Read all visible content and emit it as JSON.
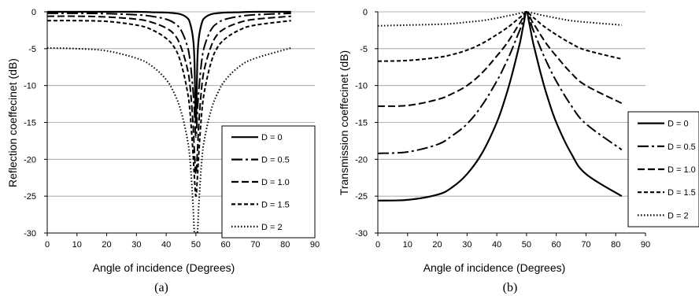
{
  "chart_data": [
    {
      "type": "line",
      "panel_label": "(a)",
      "xlabel": "Angle of incidence (Degrees)",
      "ylabel": "Reflection coeffecinet (dB)",
      "xlim": [
        0,
        90
      ],
      "ylim": [
        -30,
        0
      ],
      "xticks": [
        "0",
        "10",
        "20",
        "30",
        "40",
        "50",
        "60",
        "70",
        "80",
        "90"
      ],
      "yticks": [
        "0",
        "-5",
        "-10",
        "-15",
        "-20",
        "-25",
        "-30"
      ],
      "grid": "horizontal",
      "legend_position": "right",
      "x": [
        0,
        10,
        20,
        30,
        35,
        40,
        43,
        45,
        47,
        48,
        49,
        49.5,
        50,
        50.5,
        51,
        52,
        53,
        55,
        57,
        60,
        65,
        70,
        82
      ],
      "series": [
        {
          "name": "D = 0",
          "style": "solid",
          "values": [
            0,
            0,
            0,
            0,
            -0.05,
            -0.1,
            -0.2,
            -0.35,
            -0.8,
            -1.5,
            -3.5,
            -6.5,
            -15,
            -6.5,
            -3.5,
            -1.5,
            -0.8,
            -0.35,
            -0.2,
            -0.1,
            -0.05,
            0,
            0
          ]
        },
        {
          "name": "D = 0.5",
          "style": "long-dash-dot",
          "values": [
            -0.2,
            -0.2,
            -0.25,
            -0.4,
            -0.6,
            -1.0,
            -1.6,
            -2.5,
            -4.5,
            -6.5,
            -10.5,
            -13.5,
            -17,
            -13.5,
            -10.5,
            -6.5,
            -4.5,
            -2.5,
            -1.6,
            -1.0,
            -0.6,
            -0.4,
            -0.2
          ]
        },
        {
          "name": "D = 1.0",
          "style": "dashed",
          "values": [
            -0.6,
            -0.6,
            -0.7,
            -1.0,
            -1.4,
            -2.2,
            -3.2,
            -4.8,
            -7.5,
            -10,
            -15,
            -19,
            -22,
            -19,
            -15,
            -10,
            -7.5,
            -4.8,
            -3.2,
            -2.2,
            -1.4,
            -1.0,
            -0.6
          ]
        },
        {
          "name": "D = 1.5",
          "style": "short-dash",
          "values": [
            -1.2,
            -1.2,
            -1.3,
            -1.8,
            -2.4,
            -3.6,
            -5.0,
            -7.0,
            -10.5,
            -13.5,
            -19,
            -22.5,
            -25,
            -22.5,
            -19,
            -13.5,
            -10.5,
            -7.0,
            -5.0,
            -3.6,
            -2.4,
            -1.8,
            -1.2
          ]
        },
        {
          "name": "D = 2",
          "style": "dotted",
          "values": [
            -4.9,
            -5.0,
            -5.3,
            -6.3,
            -7.3,
            -9.2,
            -11.3,
            -13.5,
            -17,
            -20,
            -26,
            -30,
            -30,
            -30,
            -26,
            -20,
            -17,
            -13.5,
            -11.3,
            -9.2,
            -7.3,
            -6.3,
            -4.9
          ]
        }
      ]
    },
    {
      "type": "line",
      "panel_label": "(b)",
      "xlabel": "Angle of incidence (Degrees)",
      "ylabel": "Transmission coeffecinet (dB)",
      "xlim": [
        0,
        90
      ],
      "ylim": [
        -30,
        0
      ],
      "xticks": [
        "0",
        "10",
        "20",
        "30",
        "40",
        "50",
        "60",
        "70",
        "80",
        "90"
      ],
      "yticks": [
        "0",
        "-5",
        "-10",
        "-15",
        "-20",
        "-25",
        "-30"
      ],
      "grid": "horizontal",
      "legend_position": "right",
      "x": [
        0,
        10,
        20,
        25,
        30,
        35,
        40,
        43,
        45,
        47,
        48,
        49,
        50,
        51,
        52,
        53,
        55,
        57,
        60,
        65,
        70,
        82
      ],
      "series": [
        {
          "name": "D = 0",
          "style": "solid",
          "values": [
            -25.6,
            -25.5,
            -24.8,
            -23.8,
            -22.0,
            -19.2,
            -15.0,
            -11.5,
            -8.7,
            -5.5,
            -3.8,
            -1.7,
            0,
            -1.7,
            -3.8,
            -5.5,
            -8.7,
            -11.5,
            -15.0,
            -19.2,
            -22.0,
            -25.0
          ]
        },
        {
          "name": "D = 0.5",
          "style": "long-dash-dot",
          "values": [
            -19.2,
            -19.0,
            -18.0,
            -16.8,
            -15.2,
            -12.7,
            -9.4,
            -7.0,
            -5.2,
            -3.2,
            -2.2,
            -1.0,
            0,
            -1.0,
            -2.2,
            -3.2,
            -5.2,
            -7.0,
            -9.4,
            -12.7,
            -15.2,
            -18.7
          ]
        },
        {
          "name": "D = 1.0",
          "style": "dashed",
          "values": [
            -12.8,
            -12.7,
            -11.9,
            -11.1,
            -10.0,
            -8.3,
            -6.0,
            -4.5,
            -3.3,
            -2.0,
            -1.4,
            -0.6,
            0,
            -0.6,
            -1.4,
            -2.0,
            -3.3,
            -4.5,
            -6.0,
            -8.3,
            -10.0,
            -12.4
          ]
        },
        {
          "name": "D = 1.5",
          "style": "short-dash",
          "values": [
            -6.7,
            -6.6,
            -6.2,
            -5.8,
            -5.2,
            -4.3,
            -3.1,
            -2.3,
            -1.7,
            -1.0,
            -0.7,
            -0.3,
            0,
            -0.3,
            -0.7,
            -1.0,
            -1.7,
            -2.3,
            -3.1,
            -4.3,
            -5.2,
            -6.4
          ]
        },
        {
          "name": "D = 2",
          "style": "dotted",
          "values": [
            -1.9,
            -1.8,
            -1.7,
            -1.6,
            -1.4,
            -1.2,
            -0.85,
            -0.6,
            -0.45,
            -0.25,
            -0.17,
            -0.08,
            0,
            -0.08,
            -0.17,
            -0.25,
            -0.45,
            -0.6,
            -0.85,
            -1.2,
            -1.4,
            -1.8
          ]
        }
      ]
    }
  ]
}
